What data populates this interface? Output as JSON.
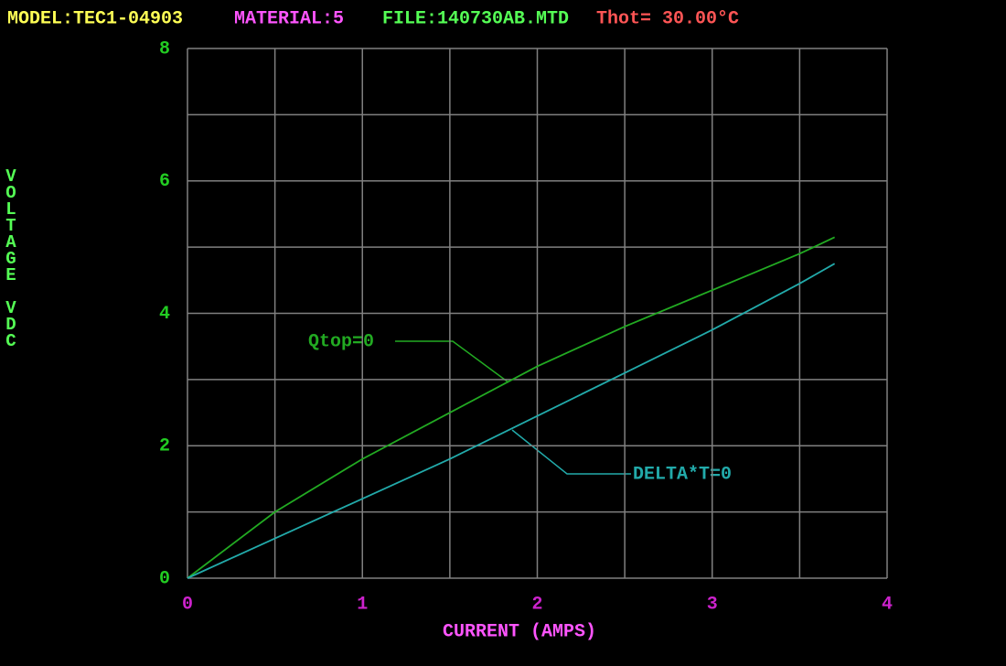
{
  "header": {
    "model": "MODEL:TEC1-04903",
    "material": "MATERIAL:5",
    "file": "FILE:140730AB.MTD",
    "thot": "Thot= 30.00°C"
  },
  "chart_data": {
    "type": "line",
    "xlabel": "CURRENT (AMPS)",
    "ylabel": "VOLTAGE VDC",
    "xlim": [
      0,
      4
    ],
    "ylim": [
      0,
      8
    ],
    "xticks": [
      0,
      1,
      2,
      3,
      4
    ],
    "yticks": [
      0,
      2,
      4,
      6,
      8
    ],
    "xgrid": [
      0,
      0.5,
      1,
      1.5,
      2,
      2.5,
      3,
      3.5,
      4
    ],
    "ygrid": [
      0,
      1,
      2,
      3,
      4,
      5,
      6,
      7,
      8
    ],
    "grid": true,
    "grid_color": "#808080",
    "x": [
      0,
      0.5,
      1,
      1.5,
      2,
      2.5,
      3,
      3.5,
      3.7
    ],
    "series": [
      {
        "name": "Qtop=0",
        "color": "#22aa22",
        "values": [
          0,
          1.0,
          1.8,
          2.5,
          3.2,
          3.8,
          4.35,
          4.9,
          5.15
        ]
      },
      {
        "name": "DELTA*T=0",
        "color": "#22aaaa",
        "values": [
          0,
          0.6,
          1.2,
          1.8,
          2.45,
          3.1,
          3.75,
          4.45,
          4.75
        ]
      }
    ]
  }
}
